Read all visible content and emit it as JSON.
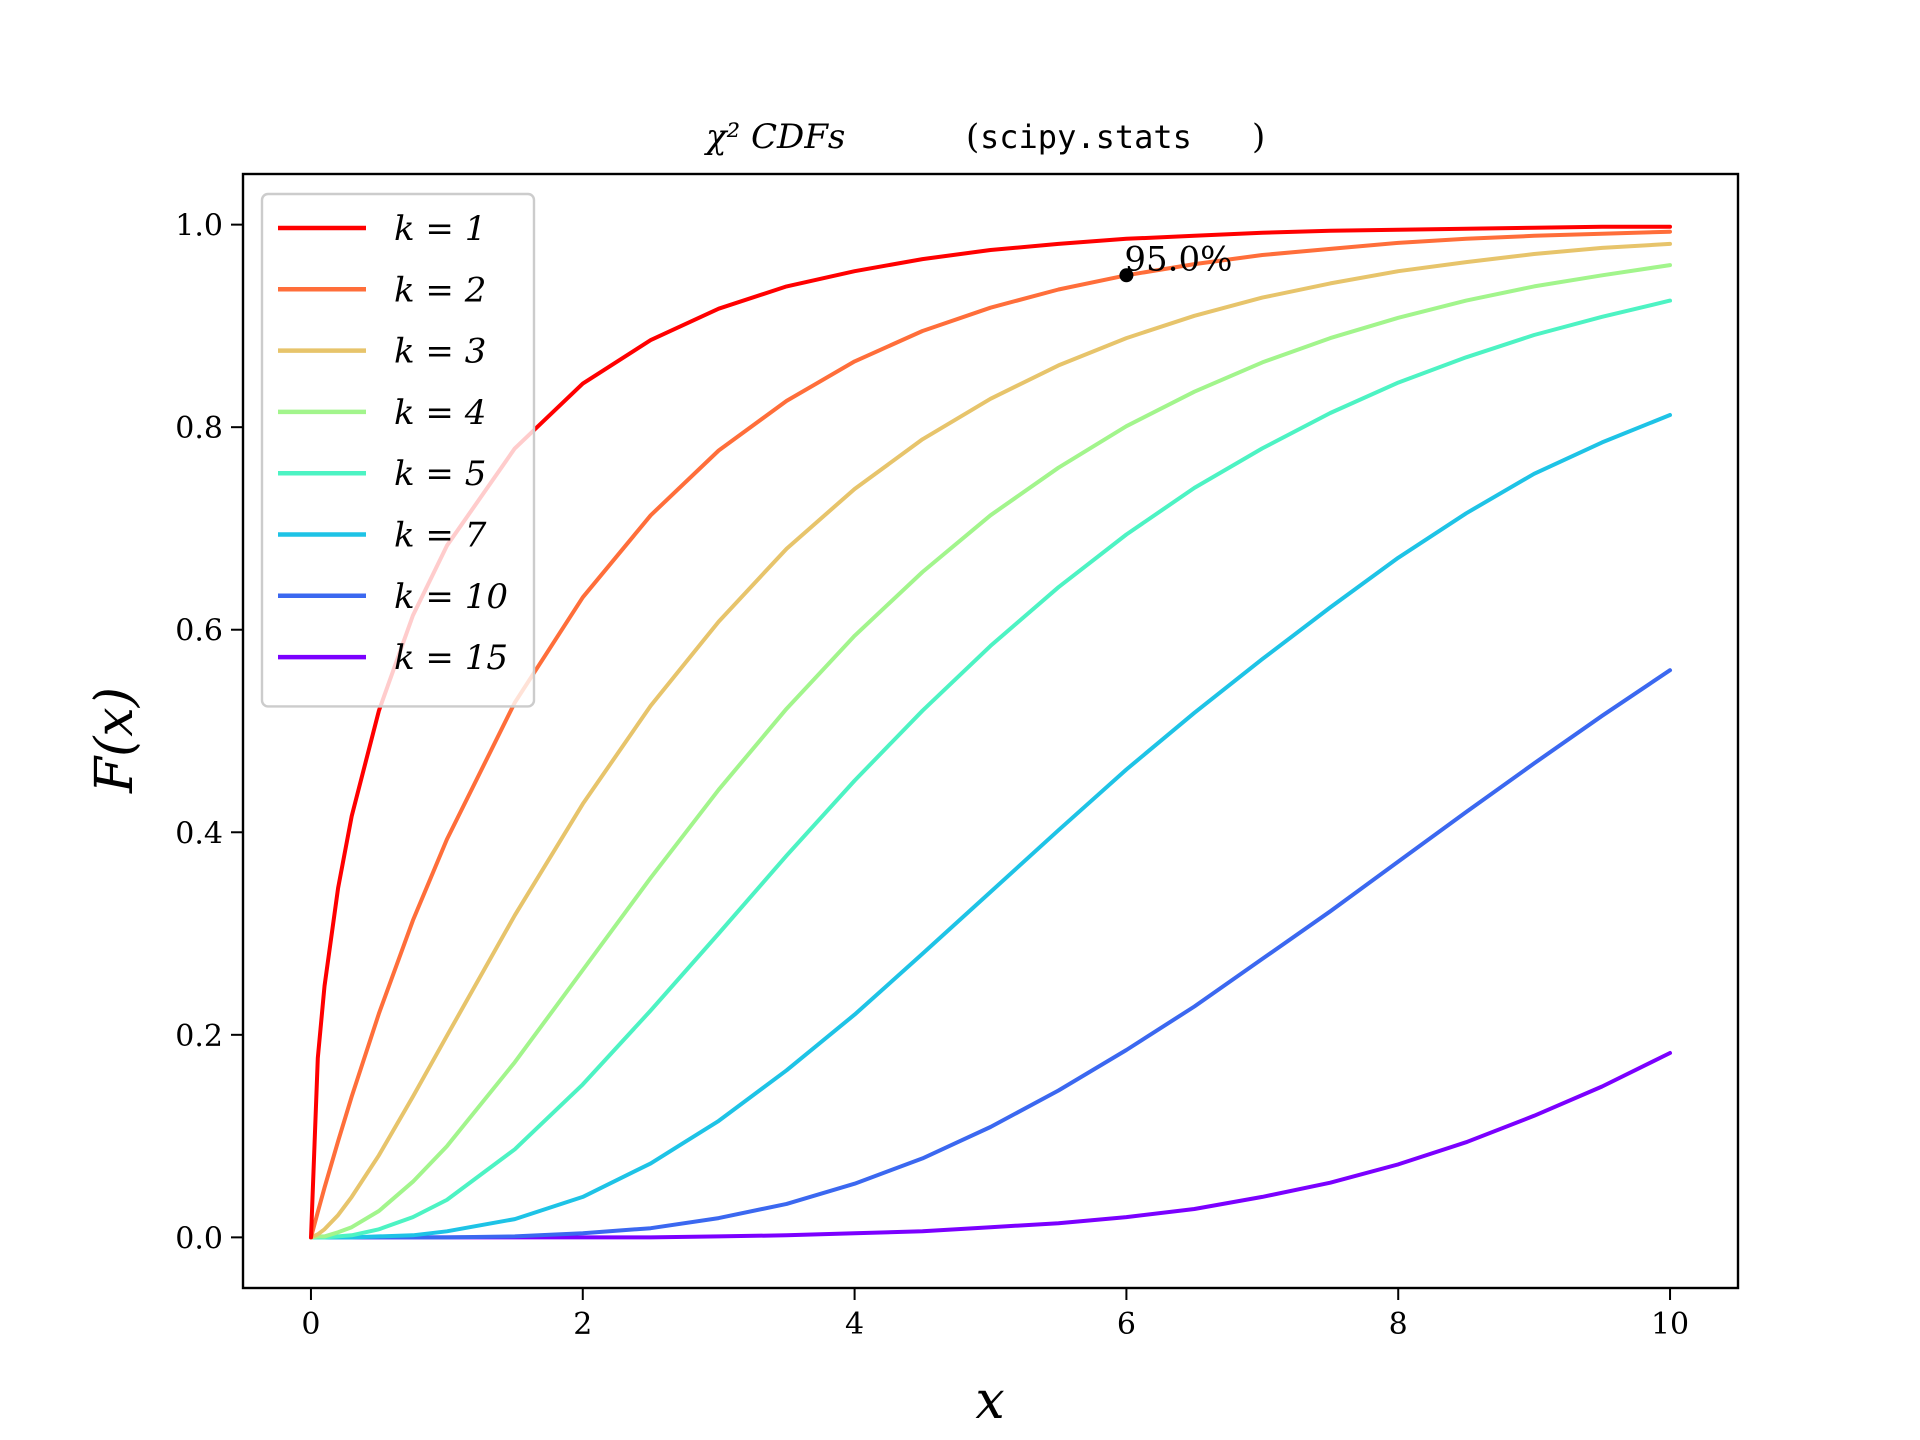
{
  "chart_data": {
    "type": "line",
    "title": {
      "math": "χ² CDFs",
      "paren_open": "(",
      "code": "scipy.stats",
      "paren_close": ")"
    },
    "xlabel": "x",
    "ylabel": "F(x)",
    "xlim": [
      -0.5,
      10.5
    ],
    "ylim": [
      -0.05,
      1.05
    ],
    "xticks": [
      0,
      2,
      4,
      6,
      8,
      10
    ],
    "xtick_labels": [
      "0",
      "2",
      "4",
      "6",
      "8",
      "10"
    ],
    "yticks": [
      0.0,
      0.2,
      0.4,
      0.6,
      0.8,
      1.0
    ],
    "ytick_labels": [
      "0.0",
      "0.2",
      "0.4",
      "0.6",
      "0.8",
      "1.0"
    ],
    "grid": false,
    "legend_position": "top-left",
    "x": [
      0,
      0.05,
      0.1,
      0.2,
      0.3,
      0.5,
      0.75,
      1,
      1.5,
      2,
      2.5,
      3,
      3.5,
      4,
      4.5,
      5,
      5.5,
      6,
      6.5,
      7,
      7.5,
      8,
      8.5,
      9,
      9.5,
      10
    ],
    "series": [
      {
        "name": "k = 1",
        "color": "#ff0000",
        "values": [
          0.0,
          0.177,
          0.248,
          0.345,
          0.416,
          0.52,
          0.614,
          0.683,
          0.779,
          0.843,
          0.886,
          0.917,
          0.939,
          0.954,
          0.966,
          0.975,
          0.981,
          0.986,
          0.989,
          0.992,
          0.994,
          0.995,
          0.996,
          0.997,
          0.998,
          0.998
        ]
      },
      {
        "name": "k = 2",
        "color": "#ff6e3a",
        "values": [
          0.0,
          0.025,
          0.049,
          0.095,
          0.139,
          0.221,
          0.313,
          0.393,
          0.528,
          0.632,
          0.713,
          0.777,
          0.826,
          0.865,
          0.895,
          0.918,
          0.936,
          0.95,
          0.961,
          0.97,
          0.976,
          0.982,
          0.986,
          0.989,
          0.991,
          0.993
        ]
      },
      {
        "name": "k = 3",
        "color": "#e7c46b",
        "values": [
          0.0,
          0.003,
          0.008,
          0.022,
          0.04,
          0.081,
          0.139,
          0.199,
          0.318,
          0.428,
          0.525,
          0.608,
          0.68,
          0.739,
          0.788,
          0.828,
          0.861,
          0.888,
          0.91,
          0.928,
          0.942,
          0.954,
          0.963,
          0.971,
          0.977,
          0.981
        ]
      },
      {
        "name": "k = 4",
        "color": "#a2f58c",
        "values": [
          0.0,
          0.001,
          0.001,
          0.005,
          0.01,
          0.026,
          0.055,
          0.09,
          0.173,
          0.264,
          0.355,
          0.442,
          0.522,
          0.594,
          0.657,
          0.713,
          0.76,
          0.801,
          0.835,
          0.864,
          0.888,
          0.908,
          0.925,
          0.939,
          0.95,
          0.96
        ]
      },
      {
        "name": "k = 5",
        "color": "#4df3c3",
        "values": [
          0.0,
          0.0,
          0.0,
          0.001,
          0.002,
          0.008,
          0.02,
          0.037,
          0.087,
          0.151,
          0.224,
          0.3,
          0.377,
          0.451,
          0.52,
          0.584,
          0.642,
          0.694,
          0.74,
          0.779,
          0.814,
          0.844,
          0.869,
          0.891,
          0.909,
          0.925
        ]
      },
      {
        "name": "k = 7",
        "color": "#1ec3e6",
        "values": [
          0.0,
          0.0,
          0.0,
          0.0,
          0.0,
          0.001,
          0.002,
          0.006,
          0.018,
          0.04,
          0.073,
          0.115,
          0.165,
          0.22,
          0.28,
          0.341,
          0.402,
          0.462,
          0.518,
          0.571,
          0.622,
          0.671,
          0.715,
          0.754,
          0.785,
          0.812
        ]
      },
      {
        "name": "k = 10",
        "color": "#3b68f0",
        "values": [
          0.0,
          0.0,
          0.0,
          0.0,
          0.0,
          0.0,
          0.0,
          0.0,
          0.001,
          0.004,
          0.009,
          0.019,
          0.033,
          0.053,
          0.078,
          0.109,
          0.145,
          0.185,
          0.228,
          0.275,
          0.322,
          0.371,
          0.42,
          0.468,
          0.515,
          0.56
        ]
      },
      {
        "name": "k = 15",
        "color": "#7b00ff",
        "values": [
          0.0,
          0.0,
          0.0,
          0.0,
          0.0,
          0.0,
          0.0,
          0.0,
          0.0,
          0.0,
          0.0,
          0.001,
          0.002,
          0.004,
          0.006,
          0.01,
          0.014,
          0.02,
          0.028,
          0.04,
          0.054,
          0.072,
          0.094,
          0.12,
          0.149,
          0.182
        ]
      }
    ],
    "annotation": {
      "x": 6,
      "y": 0.95,
      "text": "95.0%",
      "color": "#000000"
    }
  }
}
